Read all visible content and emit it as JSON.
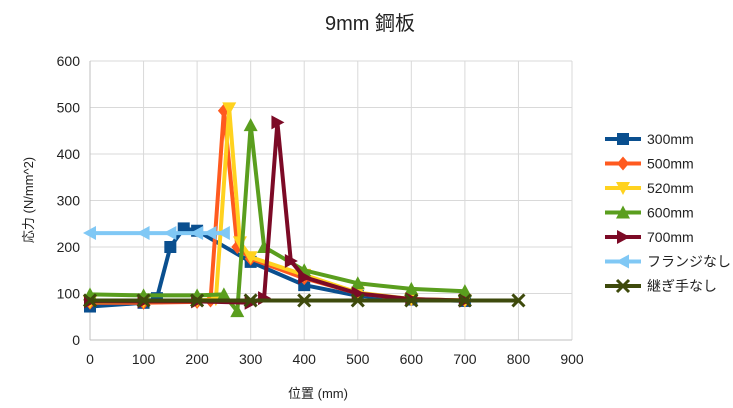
{
  "chart_data": {
    "type": "line",
    "title": "9mm 鋼板",
    "xlabel": "位置 (mm)",
    "ylabel": "応力 (N/mm^2)",
    "xlim": [
      0,
      900
    ],
    "ylim": [
      0,
      600
    ],
    "xticks": [
      "0",
      "100",
      "200",
      "300",
      "400",
      "500",
      "600",
      "700",
      "800",
      "900"
    ],
    "yticks": [
      "0",
      "100",
      "200",
      "300",
      "400",
      "500",
      "600"
    ],
    "grid": true,
    "legend_position": "right",
    "series": [
      {
        "name": "300mm",
        "color": "#0a4f8f",
        "marker": "square",
        "points": [
          [
            0,
            72
          ],
          [
            100,
            80
          ],
          [
            125,
            90
          ],
          [
            150,
            200
          ],
          [
            175,
            240
          ],
          [
            200,
            235
          ],
          [
            300,
            168
          ],
          [
            400,
            118
          ],
          [
            500,
            95
          ],
          [
            600,
            87
          ],
          [
            700,
            84
          ]
        ]
      },
      {
        "name": "500mm",
        "color": "#ff5a1f",
        "marker": "diamond",
        "points": [
          [
            0,
            80
          ],
          [
            100,
            80
          ],
          [
            200,
            82
          ],
          [
            225,
            85
          ],
          [
            250,
            493
          ],
          [
            275,
            200
          ],
          [
            300,
            175
          ],
          [
            400,
            133
          ],
          [
            500,
            100
          ],
          [
            600,
            88
          ],
          [
            700,
            85
          ]
        ]
      },
      {
        "name": "520mm",
        "color": "#ffd21f",
        "marker": "triangle-down",
        "points": [
          [
            0,
            82
          ],
          [
            100,
            83
          ],
          [
            200,
            85
          ],
          [
            235,
            88
          ],
          [
            260,
            498
          ],
          [
            280,
            210
          ],
          [
            300,
            178
          ],
          [
            400,
            140
          ],
          [
            500,
            102
          ],
          [
            600,
            88
          ],
          [
            700,
            85
          ]
        ]
      },
      {
        "name": "600mm",
        "color": "#5a9e1e",
        "marker": "triangle-up",
        "points": [
          [
            0,
            98
          ],
          [
            100,
            96
          ],
          [
            200,
            96
          ],
          [
            250,
            98
          ],
          [
            275,
            62
          ],
          [
            300,
            462
          ],
          [
            325,
            200
          ],
          [
            400,
            150
          ],
          [
            500,
            122
          ],
          [
            600,
            110
          ],
          [
            700,
            105
          ]
        ]
      },
      {
        "name": "700mm",
        "color": "#7c0a26",
        "marker": "triangle-right",
        "points": [
          [
            0,
            83
          ],
          [
            100,
            83
          ],
          [
            200,
            83
          ],
          [
            300,
            80
          ],
          [
            325,
            90
          ],
          [
            350,
            468
          ],
          [
            375,
            170
          ],
          [
            400,
            135
          ],
          [
            500,
            100
          ],
          [
            600,
            88
          ],
          [
            700,
            85
          ]
        ]
      },
      {
        "name": "フランジなし",
        "color": "#80c8f5",
        "marker": "triangle-left",
        "points": [
          [
            0,
            230
          ],
          [
            100,
            230
          ],
          [
            150,
            230
          ],
          [
            200,
            230
          ],
          [
            225,
            230
          ],
          [
            250,
            230
          ]
        ]
      },
      {
        "name": "継ぎ手なし",
        "color": "#3e4a0c",
        "marker": "x",
        "points": [
          [
            0,
            85
          ],
          [
            100,
            85
          ],
          [
            200,
            85
          ],
          [
            300,
            85
          ],
          [
            400,
            85
          ],
          [
            500,
            85
          ],
          [
            600,
            85
          ],
          [
            700,
            85
          ],
          [
            800,
            85
          ]
        ]
      }
    ]
  }
}
